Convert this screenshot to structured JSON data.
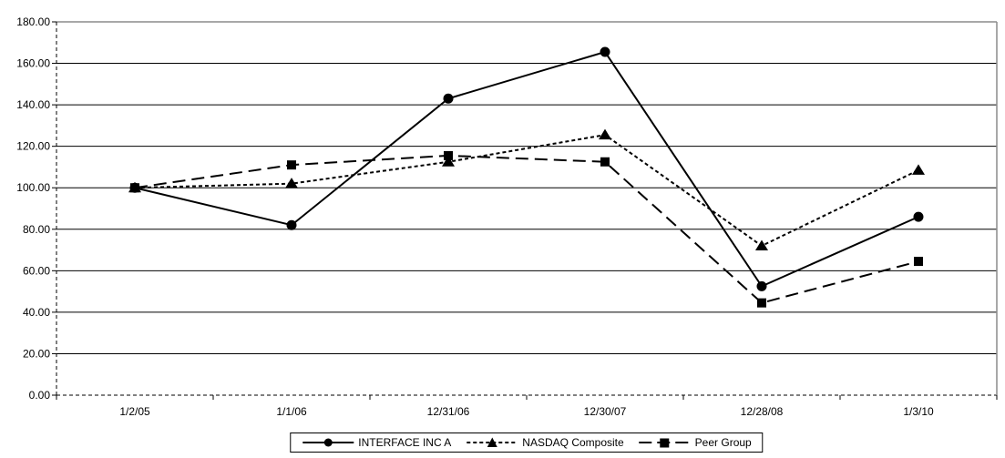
{
  "chart_data": {
    "type": "line",
    "categories": [
      "1/2/05",
      "1/1/06",
      "12/31/06",
      "12/30/07",
      "12/28/08",
      "1/3/10"
    ],
    "series": [
      {
        "name": "INTERFACE INC A",
        "marker": "circle",
        "line_style": "solid",
        "values": [
          100.0,
          82.0,
          143.0,
          165.5,
          52.5,
          86.0
        ]
      },
      {
        "name": "NASDAQ Composite",
        "marker": "triangle",
        "line_style": "dashed",
        "values": [
          100.0,
          102.0,
          112.5,
          125.5,
          72.0,
          108.5
        ]
      },
      {
        "name": "Peer Group",
        "marker": "square",
        "line_style": "long-dash",
        "values": [
          100.0,
          111.0,
          115.5,
          112.5,
          44.5,
          64.5
        ]
      }
    ],
    "title": "",
    "xlabel": "",
    "ylabel": "",
    "ylim": [
      0,
      180
    ],
    "y_tick_step": 20,
    "y_tick_labels": [
      "0.00",
      "20.00",
      "40.00",
      "60.00",
      "80.00",
      "100.00",
      "120.00",
      "140.00",
      "160.00",
      "180.00"
    ],
    "grid": "horizontal",
    "legend_position": "bottom-center",
    "colors": {
      "series": "#000000",
      "grid": "#000000",
      "border": "#8c8c8c",
      "background": "#ffffff",
      "text": "#000000"
    }
  }
}
